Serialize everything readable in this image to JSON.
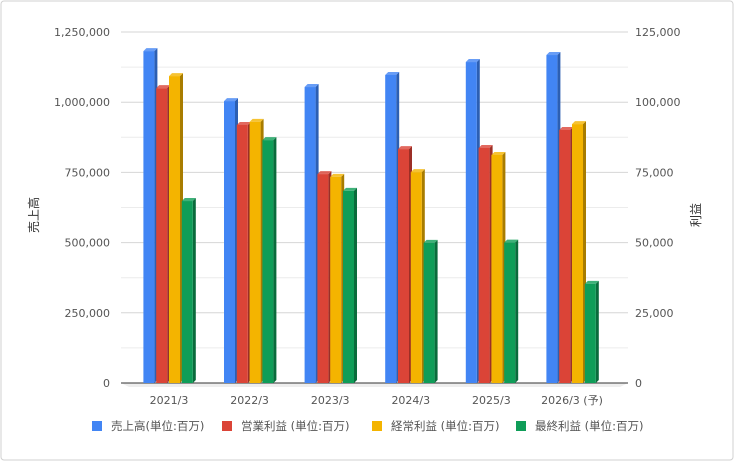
{
  "chart_data": {
    "type": "bar",
    "title": "",
    "categories": [
      "2021/3",
      "2022/3",
      "2023/3",
      "2024/3",
      "2025/3",
      "2026/3 (予)"
    ],
    "ylabel": "売上高",
    "y2label": "利益",
    "ylim": [
      0,
      1250000
    ],
    "y2lim": [
      0,
      125000
    ],
    "yticks": [
      "0",
      "250,000",
      "500,000",
      "750,000",
      "1,000,000",
      "1,250,000"
    ],
    "y2ticks": [
      "0",
      "25,000",
      "50,000",
      "75,000",
      "100,000",
      "125,000"
    ],
    "legend_position": "bottom",
    "grid": true,
    "series": [
      {
        "name": "売上高(単位:百万)",
        "axis": "left",
        "color": "#4285f4",
        "side": "#2c5fb3",
        "values": [
          1182000,
          1004000,
          1054000,
          1097000,
          1143000,
          1168000
        ]
      },
      {
        "name": "営業利益 (単位:百万)",
        "axis": "right",
        "color": "#db4437",
        "side": "#9c2f26",
        "values": [
          105000,
          91900,
          74400,
          83300,
          83700,
          90100
        ]
      },
      {
        "name": "経常利益 (単位:百万)",
        "axis": "right",
        "color": "#f4b400",
        "side": "#a87c00",
        "values": [
          109300,
          93000,
          73400,
          75100,
          81200,
          92200
        ]
      },
      {
        "name": "最終利益 (単位:百万)",
        "axis": "right",
        "color": "#0f9d58",
        "side": "#0a6b3c",
        "values": [
          64800,
          86500,
          68400,
          49900,
          50000,
          35300
        ]
      }
    ]
  }
}
